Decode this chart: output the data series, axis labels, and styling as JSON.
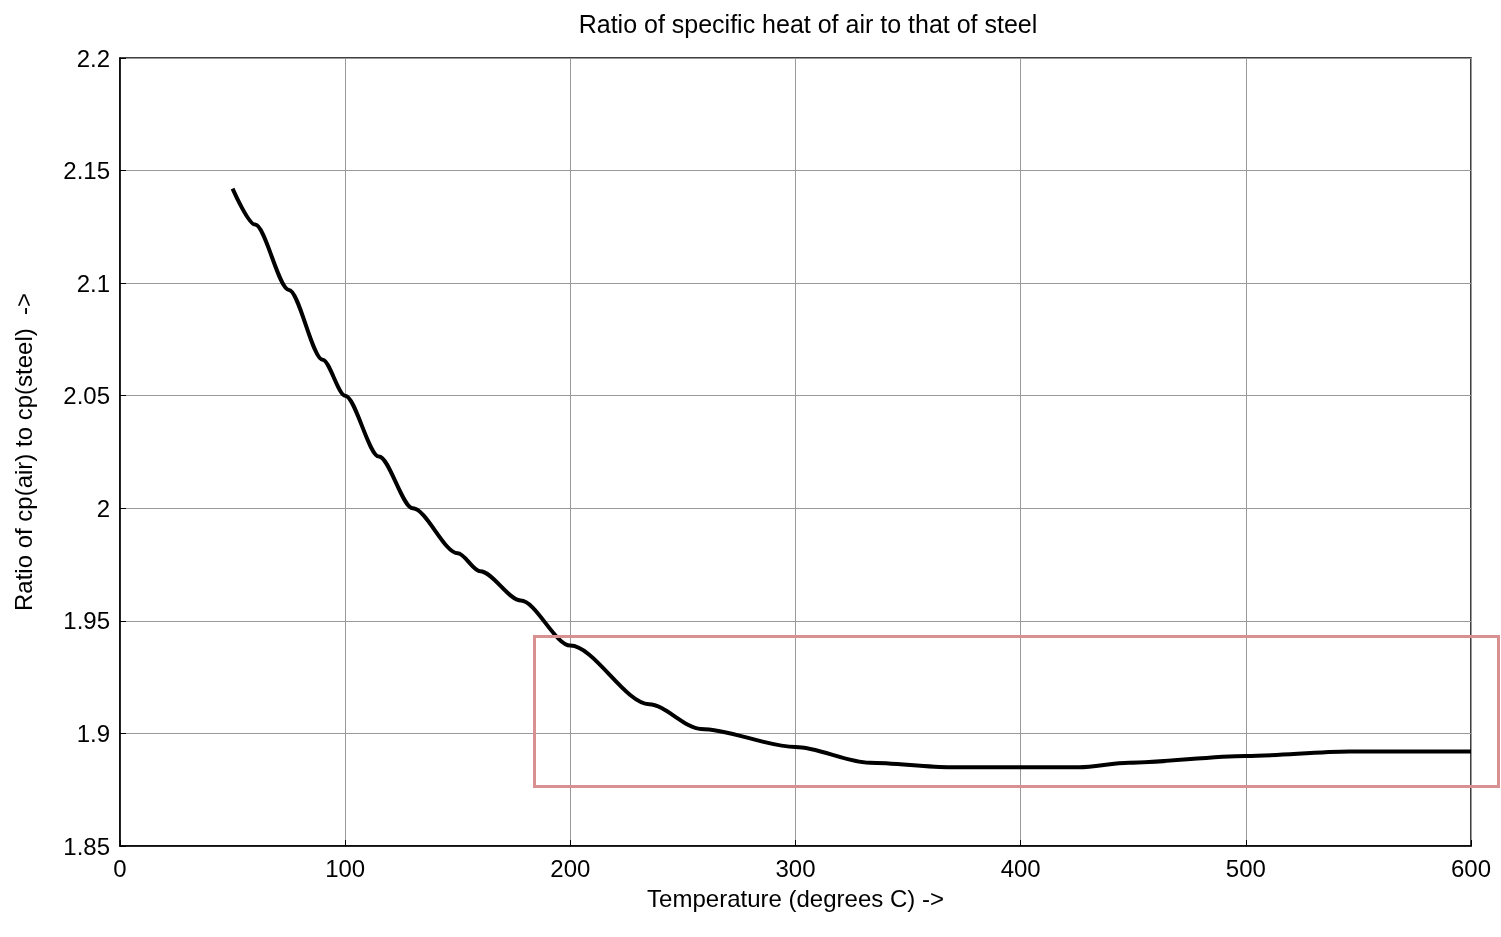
{
  "chart_data": {
    "type": "line",
    "title": "Ratio of specific heat of air to that of steel",
    "xlabel": "Temperature (degrees C) ->",
    "ylabel": "Ratio of cp(air) to cp(steel)  ->",
    "x": [
      50,
      60,
      75,
      90,
      100,
      115,
      130,
      150,
      160,
      178,
      200,
      235,
      258,
      300,
      333,
      369,
      400,
      426,
      448,
      500,
      546,
      600
    ],
    "series": [
      {
        "color": "#000000",
        "values": [
          2.142,
          2.126,
          2.097,
          2.066,
          2.05,
          2.023,
          2.0,
          1.98,
          1.972,
          1.959,
          1.939,
          1.913,
          1.902,
          1.894,
          1.887,
          1.885,
          1.885,
          1.885,
          1.887,
          1.89,
          1.892,
          1.892
        ]
      }
    ],
    "xlim": [
      0,
      600
    ],
    "xticks": [
      0,
      100,
      200,
      300,
      400,
      500,
      600
    ],
    "ylim": [
      1.85,
      2.2
    ],
    "yticks": [
      1.85,
      1.9,
      1.95,
      2,
      2.05,
      2.1,
      2.15,
      2.2
    ],
    "grid": true,
    "marker": "none",
    "line_style": "solid"
  }
}
